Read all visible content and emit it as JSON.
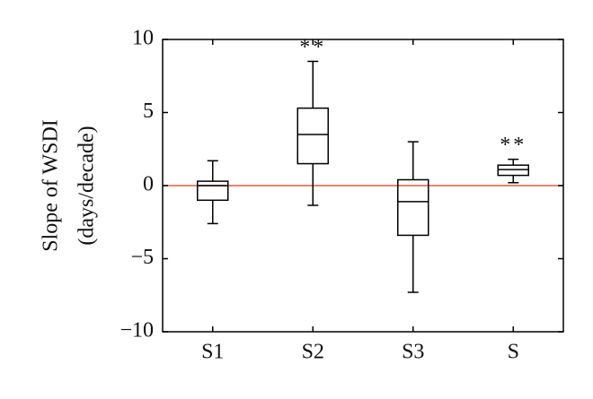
{
  "chart_data": {
    "type": "box",
    "ylabel": [
      "Slope of WSDI",
      "(days/decade)"
    ],
    "categories": [
      "S1",
      "S2",
      "S3",
      "S"
    ],
    "whisker_low": [
      -2.6,
      -1.35,
      -7.3,
      0.2
    ],
    "q1": [
      -1.0,
      1.5,
      -3.4,
      0.7
    ],
    "median": [
      0.0,
      3.5,
      -1.1,
      1.1
    ],
    "q3": [
      0.3,
      5.3,
      0.4,
      1.4
    ],
    "whisker_high": [
      1.7,
      8.5,
      3.0,
      1.8
    ],
    "annotations": [
      null,
      "**",
      null,
      "**"
    ],
    "color": "#000000",
    "hline": 0,
    "hline_color": "#e8583a",
    "ylim": [
      -10,
      10
    ],
    "yticks": [
      {
        "value": -10,
        "label": "−10"
      },
      {
        "value": -5,
        "label": "−5"
      },
      0,
      5,
      10
    ]
  }
}
